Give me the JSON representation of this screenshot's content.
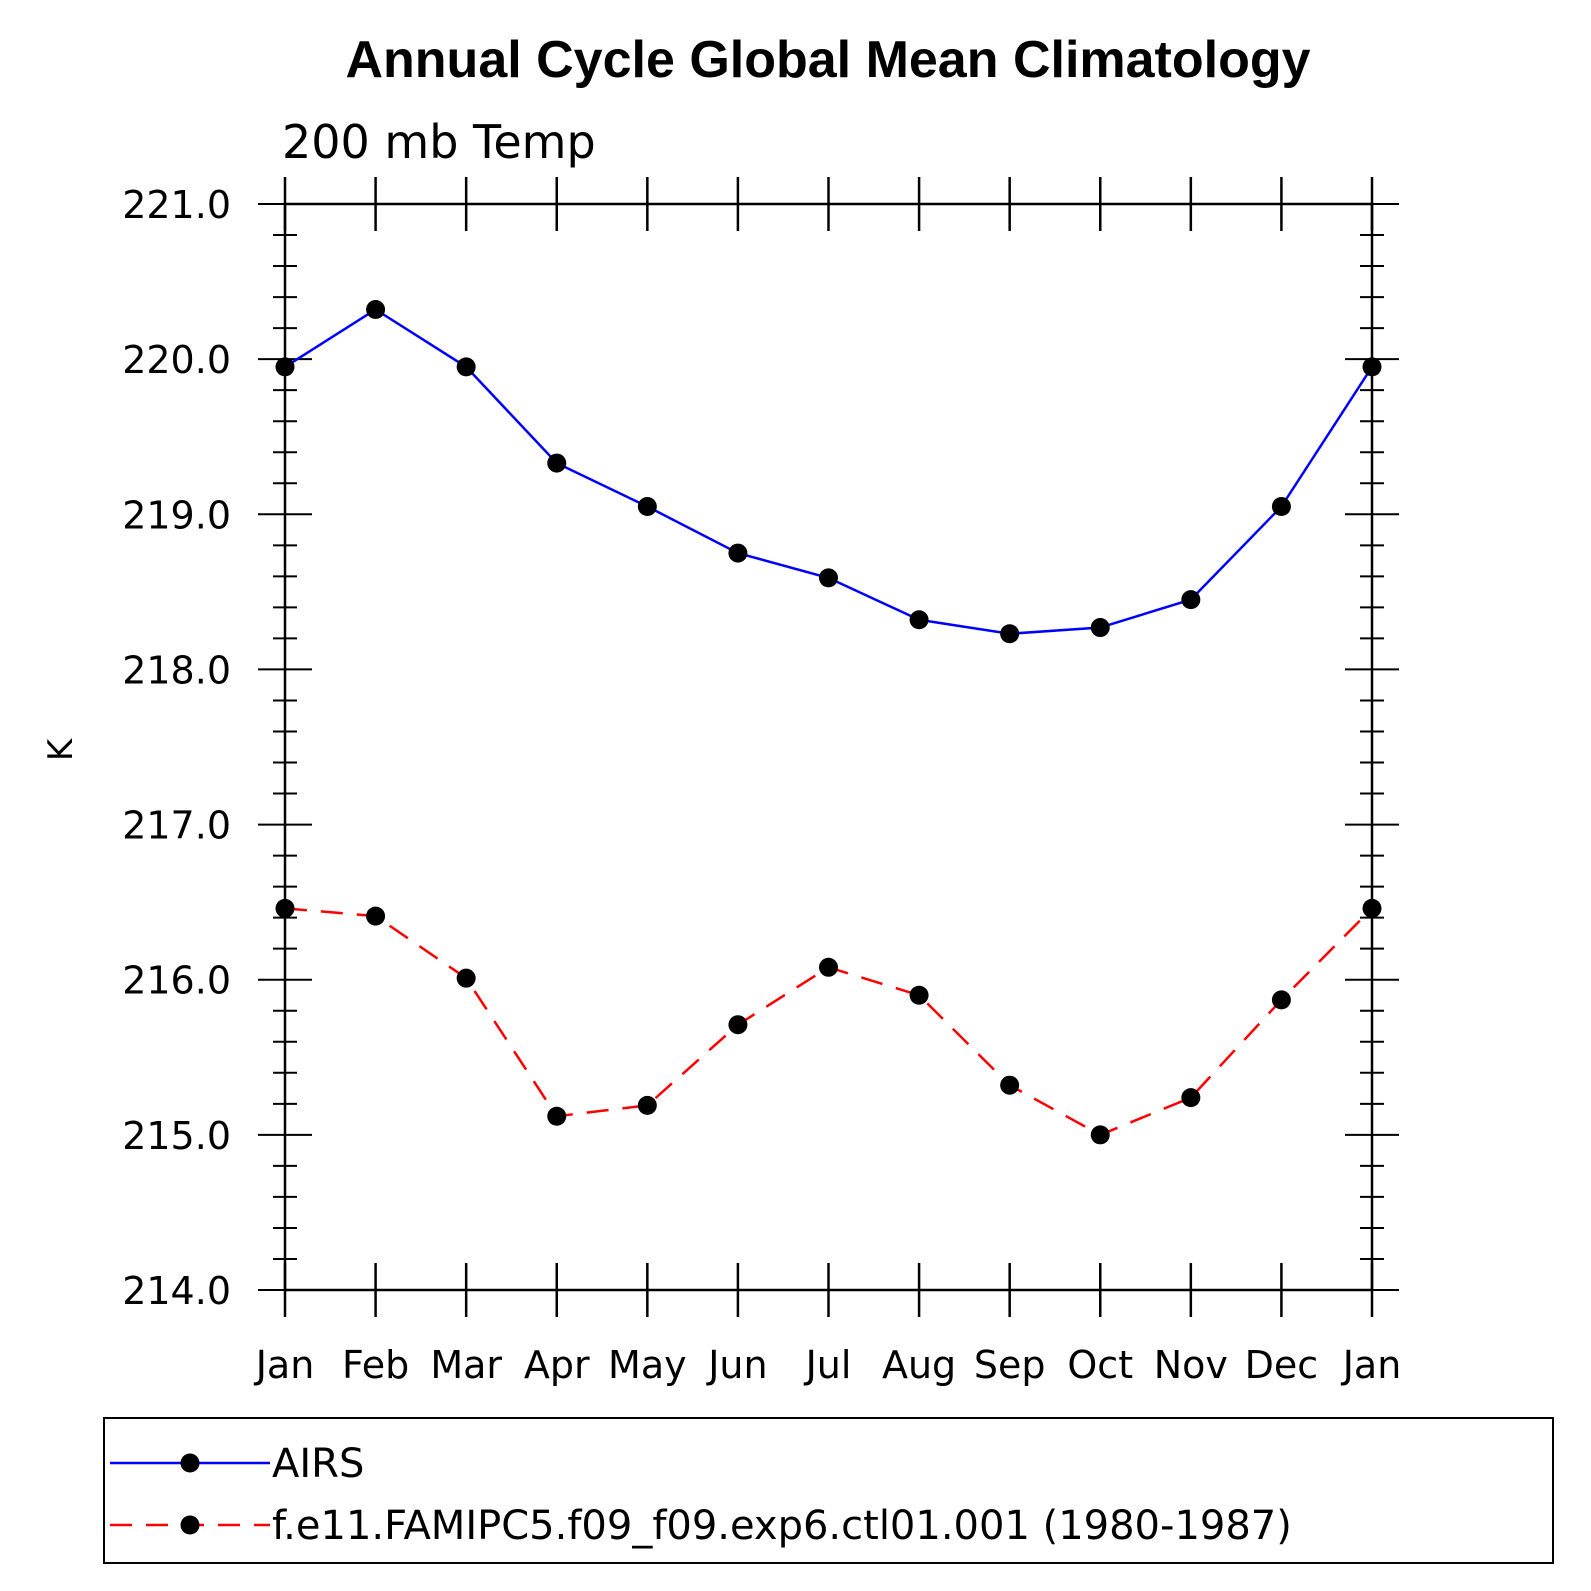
{
  "chart_data": {
    "type": "line",
    "title": "Annual Cycle Global Mean Climatology",
    "subtitle": "200 mb Temp",
    "xlabel": "",
    "ylabel": "K",
    "categories": [
      "Jan",
      "Feb",
      "Mar",
      "Apr",
      "May",
      "Jun",
      "Jul",
      "Aug",
      "Sep",
      "Oct",
      "Nov",
      "Dec",
      "Jan"
    ],
    "ylim": [
      214.0,
      221.0
    ],
    "yticks": [
      "214.0",
      "215.0",
      "216.0",
      "217.0",
      "218.0",
      "219.0",
      "220.0",
      "221.0"
    ],
    "grid": false,
    "legend_position": "bottom",
    "series": [
      {
        "name": "AIRS",
        "color": "#0000ff",
        "dash": "solid",
        "marker": "filled-circle",
        "values": [
          219.95,
          220.32,
          219.95,
          219.33,
          219.05,
          218.75,
          218.59,
          218.32,
          218.23,
          218.27,
          218.45,
          219.05,
          219.95
        ]
      },
      {
        "name": "f.e11.FAMIPC5.f09_f09.exp6.ctl01.001 (1980-1987)",
        "color": "#ff0000",
        "dash": "dashed",
        "marker": "filled-circle",
        "values": [
          216.46,
          216.41,
          216.01,
          215.12,
          215.19,
          215.71,
          216.08,
          215.9,
          215.32,
          215.0,
          215.24,
          215.87,
          216.46
        ]
      }
    ]
  }
}
